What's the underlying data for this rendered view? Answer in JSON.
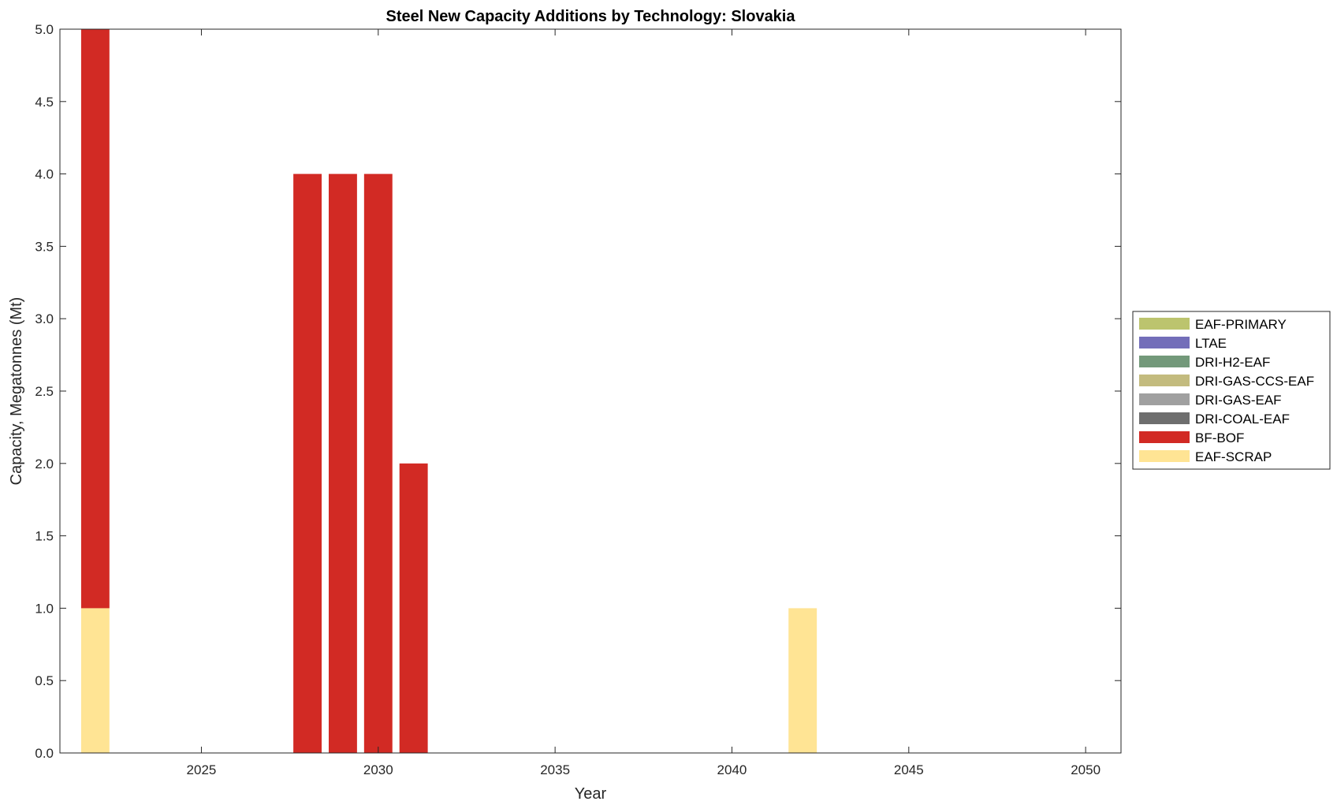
{
  "chart_data": {
    "type": "bar",
    "stacked": true,
    "title": "Steel New Capacity Additions by Technology: Slovakia",
    "xlabel": "Year",
    "ylabel": "Capacity, Megatonnes (Mt)",
    "xlim": [
      2021,
      2051
    ],
    "ylim": [
      0,
      5
    ],
    "xticks": [
      2025,
      2030,
      2035,
      2040,
      2045,
      2050
    ],
    "yticks": [
      0.0,
      0.5,
      1.0,
      1.5,
      2.0,
      2.5,
      3.0,
      3.5,
      4.0,
      4.5,
      5.0
    ],
    "grid": false,
    "legend_position": "right",
    "x": [
      2022,
      2028,
      2029,
      2030,
      2031,
      2042
    ],
    "series": [
      {
        "name": "EAF-SCRAP",
        "color": "#ffe494",
        "values": [
          1,
          0,
          0,
          0,
          0,
          1
        ]
      },
      {
        "name": "BF-BOF",
        "color": "#d22a24",
        "values": [
          4,
          4,
          4,
          4,
          2,
          0
        ]
      },
      {
        "name": "DRI-COAL-EAF",
        "color": "#6e6e6e",
        "values": [
          0,
          0,
          0,
          0,
          0,
          0
        ]
      },
      {
        "name": "DRI-GAS-EAF",
        "color": "#a0a0a0",
        "values": [
          0,
          0,
          0,
          0,
          0,
          0
        ]
      },
      {
        "name": "DRI-GAS-CCS-EAF",
        "color": "#c3bb7e",
        "values": [
          0,
          0,
          0,
          0,
          0,
          0
        ]
      },
      {
        "name": "DRI-H2-EAF",
        "color": "#73997a",
        "values": [
          0,
          0,
          0,
          0,
          0,
          0
        ]
      },
      {
        "name": "LTAE",
        "color": "#736eb9",
        "values": [
          0,
          0,
          0,
          0,
          0,
          0
        ]
      },
      {
        "name": "EAF-PRIMARY",
        "color": "#bcc46e",
        "values": [
          0,
          0,
          0,
          0,
          0,
          0
        ]
      }
    ],
    "legend_order": [
      "EAF-PRIMARY",
      "LTAE",
      "DRI-H2-EAF",
      "DRI-GAS-CCS-EAF",
      "DRI-GAS-EAF",
      "DRI-COAL-EAF",
      "BF-BOF",
      "EAF-SCRAP"
    ]
  }
}
